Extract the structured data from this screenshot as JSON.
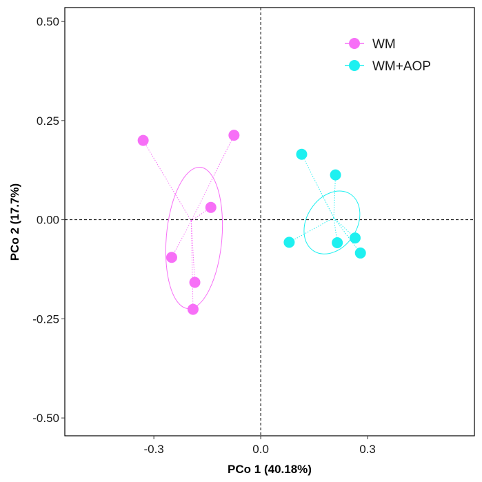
{
  "chart_data": {
    "type": "scatter",
    "xlabel": "PCo 1 (40.18%)",
    "ylabel": "PCo 2 (17.7%)",
    "xlim": [
      -0.55,
      0.6
    ],
    "ylim": [
      -0.545,
      0.535
    ],
    "x_ticks": [
      -0.3,
      0.0,
      0.3
    ],
    "x_tick_labels": [
      "-0.3",
      "0.0",
      "0.3"
    ],
    "y_ticks": [
      -0.5,
      -0.25,
      0.0,
      0.25,
      0.5
    ],
    "y_tick_labels": [
      "-0.50",
      "-0.25",
      "0.00",
      "0.25",
      "0.50"
    ],
    "reference_lines": {
      "x": 0,
      "y": 0,
      "style": "dashed"
    },
    "grid": false,
    "legend_position": "top-right",
    "series": [
      {
        "name": "WM",
        "color": "#f76ff7",
        "points": [
          {
            "x": -0.33,
            "y": 0.2
          },
          {
            "x": -0.075,
            "y": 0.213
          },
          {
            "x": -0.14,
            "y": 0.031
          },
          {
            "x": -0.25,
            "y": -0.095
          },
          {
            "x": -0.185,
            "y": -0.158
          },
          {
            "x": -0.19,
            "y": -0.226
          }
        ],
        "centroid": {
          "x": -0.195,
          "y": -0.003
        },
        "ellipse": {
          "cx": -0.187,
          "cy": -0.046,
          "rx": 0.078,
          "ry": 0.179,
          "angle": 5
        }
      },
      {
        "name": "WM+AOP",
        "color": "#1ef0f0",
        "points": [
          {
            "x": 0.115,
            "y": 0.165
          },
          {
            "x": 0.21,
            "y": 0.113
          },
          {
            "x": 0.08,
            "y": -0.057
          },
          {
            "x": 0.215,
            "y": -0.058
          },
          {
            "x": 0.265,
            "y": -0.046
          },
          {
            "x": 0.28,
            "y": -0.084
          }
        ],
        "centroid": {
          "x": 0.205,
          "y": 0.005
        },
        "ellipse": {
          "cx": 0.2,
          "cy": -0.007,
          "rx": 0.095,
          "ry": 0.063,
          "angle": -57
        }
      }
    ]
  }
}
